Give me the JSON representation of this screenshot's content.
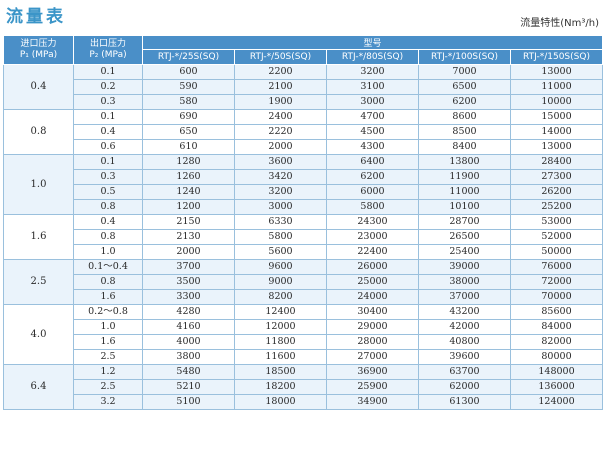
{
  "page": {
    "title": "流量表",
    "units_note": "流量特性(Nm³/h)"
  },
  "table": {
    "header_inlet_line1": "进口压力",
    "header_inlet_line2": "P₁ (MPa)",
    "header_outlet_line1": "出口压力",
    "header_outlet_line2": "P₂ (MPa)",
    "header_model": "型号",
    "models": [
      "RTJ-*/25S(SQ)",
      "RTJ-*/50S(SQ)",
      "RTJ-*/80S(SQ)",
      "RTJ-*/100S(SQ)",
      "RTJ-*/150S(SQ)"
    ],
    "groups": [
      {
        "inlet": "0.4",
        "rows": [
          {
            "outlet": "0.1",
            "values": [
              "600",
              "2200",
              "3200",
              "7000",
              "13000"
            ]
          },
          {
            "outlet": "0.2",
            "values": [
              "590",
              "2100",
              "3100",
              "6500",
              "11000"
            ]
          },
          {
            "outlet": "0.3",
            "values": [
              "580",
              "1900",
              "3000",
              "6200",
              "10000"
            ]
          }
        ]
      },
      {
        "inlet": "0.8",
        "rows": [
          {
            "outlet": "0.1",
            "values": [
              "690",
              "2400",
              "4700",
              "8600",
              "15000"
            ]
          },
          {
            "outlet": "0.4",
            "values": [
              "650",
              "2220",
              "4500",
              "8500",
              "14000"
            ]
          },
          {
            "outlet": "0.6",
            "values": [
              "610",
              "2000",
              "4300",
              "8400",
              "13000"
            ]
          }
        ]
      },
      {
        "inlet": "1.0",
        "rows": [
          {
            "outlet": "0.1",
            "values": [
              "1280",
              "3600",
              "6400",
              "13800",
              "28400"
            ]
          },
          {
            "outlet": "0.3",
            "values": [
              "1260",
              "3420",
              "6200",
              "11900",
              "27300"
            ]
          },
          {
            "outlet": "0.5",
            "values": [
              "1240",
              "3200",
              "6000",
              "11000",
              "26200"
            ]
          },
          {
            "outlet": "0.8",
            "values": [
              "1200",
              "3000",
              "5800",
              "10100",
              "25200"
            ]
          }
        ]
      },
      {
        "inlet": "1.6",
        "rows": [
          {
            "outlet": "0.4",
            "values": [
              "2150",
              "6330",
              "24300",
              "28700",
              "53000"
            ]
          },
          {
            "outlet": "0.8",
            "values": [
              "2130",
              "5800",
              "23000",
              "26500",
              "52000"
            ]
          },
          {
            "outlet": "1.0",
            "values": [
              "2000",
              "5600",
              "22400",
              "25400",
              "50000"
            ]
          }
        ]
      },
      {
        "inlet": "2.5",
        "rows": [
          {
            "outlet": "0.1～0.4",
            "values": [
              "3700",
              "9600",
              "26000",
              "39000",
              "76000"
            ]
          },
          {
            "outlet": "0.8",
            "values": [
              "3500",
              "9000",
              "25000",
              "38000",
              "72000"
            ]
          },
          {
            "outlet": "1.6",
            "values": [
              "3300",
              "8200",
              "24000",
              "37000",
              "70000"
            ]
          }
        ]
      },
      {
        "inlet": "4.0",
        "rows": [
          {
            "outlet": "0.2～0.8",
            "values": [
              "4280",
              "12400",
              "30400",
              "43200",
              "85600"
            ]
          },
          {
            "outlet": "1.0",
            "values": [
              "4160",
              "12000",
              "29000",
              "42000",
              "84000"
            ]
          },
          {
            "outlet": "1.6",
            "values": [
              "4000",
              "11800",
              "28000",
              "40800",
              "82000"
            ]
          },
          {
            "outlet": "2.5",
            "values": [
              "3800",
              "11600",
              "27000",
              "39600",
              "80000"
            ]
          }
        ]
      },
      {
        "inlet": "6.4",
        "rows": [
          {
            "outlet": "1.2",
            "values": [
              "5480",
              "18500",
              "36900",
              "63700",
              "148000"
            ]
          },
          {
            "outlet": "2.5",
            "values": [
              "5210",
              "18200",
              "25900",
              "62000",
              "136000"
            ]
          },
          {
            "outlet": "3.2",
            "values": [
              "5100",
              "18000",
              "34900",
              "61300",
              "124000"
            ]
          }
        ]
      }
    ]
  },
  "colors": {
    "title": "#3b95c8",
    "header_bg": "#4a8fc8",
    "row_shade": "#eaf3fb",
    "border": "#9ac0dd"
  }
}
